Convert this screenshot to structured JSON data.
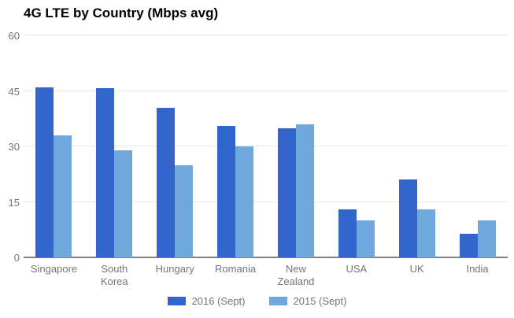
{
  "title": "4G LTE by Country (Mbps avg)",
  "style": {
    "series_2016_color": "#3366CC",
    "series_2015_color": "#6FA8DC",
    "gridline_color": "#E6E6E6",
    "baseline_color": "#808080",
    "axis_text_color": "#757575",
    "title_color": "#000000",
    "background_color": "#FFFFFF"
  },
  "chart_data": {
    "type": "bar",
    "title": "4G LTE by Country (Mbps avg)",
    "xlabel": "",
    "ylabel": "",
    "ylim": [
      0,
      60
    ],
    "yticks": [
      0,
      15,
      30,
      45,
      60
    ],
    "grid": true,
    "legend_position": "bottom",
    "categories": [
      "Singapore",
      "South Korea",
      "Hungary",
      "Romania",
      "New Zealand",
      "USA",
      "UK",
      "India"
    ],
    "series": [
      {
        "name": "2016 (Sept)",
        "color": "#3366CC",
        "values": [
          45.9,
          45.8,
          40.5,
          35.5,
          35,
          13,
          21,
          6.4
        ]
      },
      {
        "name": "2015 (Sept)",
        "color": "#6FA8DC",
        "values": [
          33,
          29,
          25,
          30,
          36,
          10,
          13,
          10
        ]
      }
    ]
  }
}
